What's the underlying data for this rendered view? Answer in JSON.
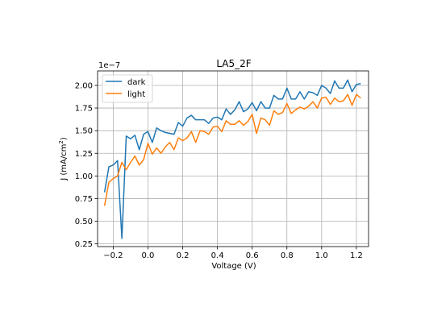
{
  "chart_data": {
    "type": "line",
    "title": "LA5_2F",
    "xlabel": "Voltage (V)",
    "ylabel_main": "J (mA/cm",
    "ylabel_sup": "2",
    "ylabel_close": ")",
    "y_offset_label": "1e−7",
    "y_scale": 1e-07,
    "xlim": [
      -0.29,
      1.27
    ],
    "ylim": [
      0.22,
      2.16
    ],
    "xticks": [
      -0.2,
      0.0,
      0.2,
      0.4,
      0.6,
      0.8,
      1.0,
      1.2
    ],
    "xtick_labels": [
      "−0.2",
      "0.0",
      "0.2",
      "0.4",
      "0.6",
      "0.8",
      "1.0",
      "1.2"
    ],
    "yticks": [
      0.25,
      0.5,
      0.75,
      1.0,
      1.25,
      1.5,
      1.75,
      2.0
    ],
    "ytick_labels": [
      "0.25",
      "0.50",
      "0.75",
      "1.00",
      "1.25",
      "1.50",
      "1.75",
      "2.00"
    ],
    "grid": true,
    "legend": "top-left",
    "x": [
      -0.25,
      -0.225,
      -0.2,
      -0.175,
      -0.15,
      -0.125,
      -0.1,
      -0.075,
      -0.05,
      -0.025,
      0.0,
      0.025,
      0.05,
      0.075,
      0.1,
      0.125,
      0.15,
      0.175,
      0.2,
      0.225,
      0.25,
      0.275,
      0.3,
      0.325,
      0.35,
      0.375,
      0.4,
      0.425,
      0.45,
      0.475,
      0.5,
      0.525,
      0.55,
      0.575,
      0.6,
      0.625,
      0.65,
      0.675,
      0.7,
      0.725,
      0.75,
      0.775,
      0.8,
      0.825,
      0.85,
      0.875,
      0.9,
      0.925,
      0.95,
      0.975,
      1.0,
      1.025,
      1.05,
      1.075,
      1.1,
      1.125,
      1.15,
      1.175,
      1.2,
      1.225
    ],
    "series": [
      {
        "name": "dark",
        "color": "#1f77b4",
        "values": [
          0.82,
          1.1,
          1.12,
          1.17,
          0.31,
          1.44,
          1.41,
          1.45,
          1.29,
          1.46,
          1.49,
          1.37,
          1.53,
          1.5,
          1.48,
          1.47,
          1.46,
          1.59,
          1.55,
          1.64,
          1.67,
          1.62,
          1.62,
          1.62,
          1.58,
          1.64,
          1.65,
          1.62,
          1.74,
          1.68,
          1.73,
          1.82,
          1.71,
          1.74,
          1.81,
          1.72,
          1.82,
          1.75,
          1.75,
          1.89,
          1.85,
          1.85,
          1.97,
          1.85,
          1.85,
          1.93,
          1.85,
          1.93,
          1.92,
          1.89,
          2.0,
          1.97,
          1.91,
          2.05,
          1.97,
          1.97,
          2.06,
          1.93,
          2.01,
          2.02
        ]
      },
      {
        "name": "light",
        "color": "#ff7f0e",
        "values": [
          0.67,
          0.93,
          0.97,
          1.0,
          1.15,
          1.07,
          1.15,
          1.22,
          1.12,
          1.18,
          1.36,
          1.24,
          1.31,
          1.25,
          1.32,
          1.37,
          1.29,
          1.42,
          1.39,
          1.42,
          1.49,
          1.37,
          1.5,
          1.49,
          1.46,
          1.54,
          1.55,
          1.49,
          1.61,
          1.57,
          1.57,
          1.61,
          1.56,
          1.6,
          1.68,
          1.47,
          1.64,
          1.62,
          1.56,
          1.72,
          1.68,
          1.7,
          1.8,
          1.69,
          1.73,
          1.76,
          1.74,
          1.77,
          1.82,
          1.75,
          1.86,
          1.87,
          1.79,
          1.86,
          1.82,
          1.83,
          1.9,
          1.78,
          1.9,
          1.86
        ]
      }
    ]
  }
}
